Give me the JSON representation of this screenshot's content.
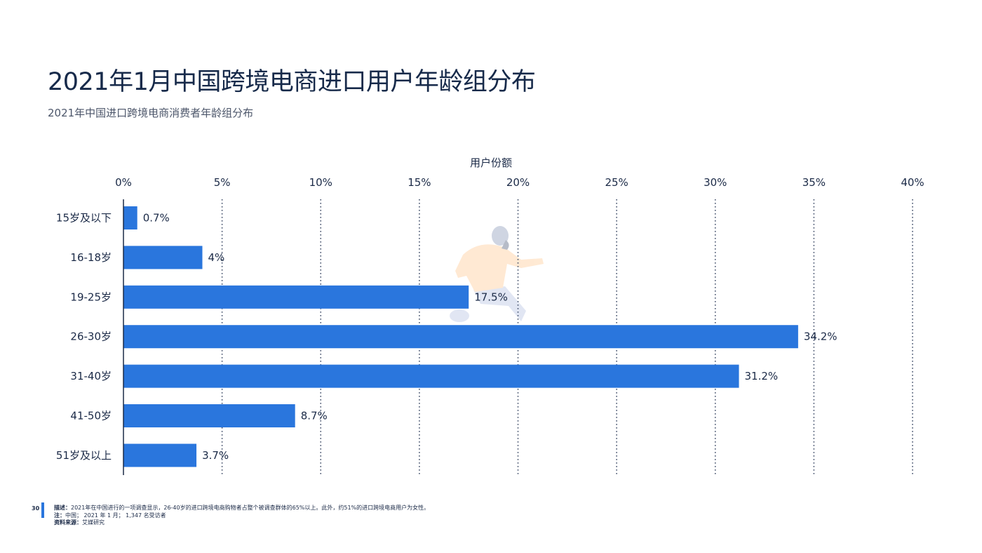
{
  "title": "2021年1月中国跨境电商进口用户年龄组分布",
  "subtitle": "2021年中国进口跨境电商消费者年龄组分布",
  "footer": {
    "page_number": "30",
    "description_label": "描述：",
    "description": "2021年在中国进行的一项调查显示，26-40岁的进口跨境电商购物者占整个被调查群体的65%以上。此外，约51%的进口跨境电商用户为女性。",
    "note_label": "注：",
    "note": "中国；  2021 年 1 月；  1,347 名受访者",
    "source_label": "资料来源：",
    "source": "艾媒研究"
  },
  "chart_data": {
    "type": "bar",
    "orientation": "horizontal",
    "xlabel": "用户份额",
    "xlim": [
      0,
      40
    ],
    "x_ticks": [
      "0%",
      "5%",
      "10%",
      "15%",
      "20%",
      "25%",
      "30%",
      "35%",
      "40%"
    ],
    "x_tick_values": [
      0,
      5,
      10,
      15,
      20,
      25,
      30,
      35,
      40
    ],
    "categories": [
      "15岁及以下",
      "16-18岁",
      "19-25岁",
      "26-30岁",
      "31-40岁",
      "41-50岁",
      "51岁及以上"
    ],
    "values": [
      0.7,
      4,
      17.5,
      34.2,
      31.2,
      8.7,
      3.7
    ],
    "value_labels": [
      "0.7%",
      "4%",
      "17.5%",
      "34.2%",
      "31.2%",
      "8.7%",
      "3.7%"
    ],
    "bar_color": "#2a76dd",
    "grid": "vertical dotted",
    "axis_position": "top"
  }
}
